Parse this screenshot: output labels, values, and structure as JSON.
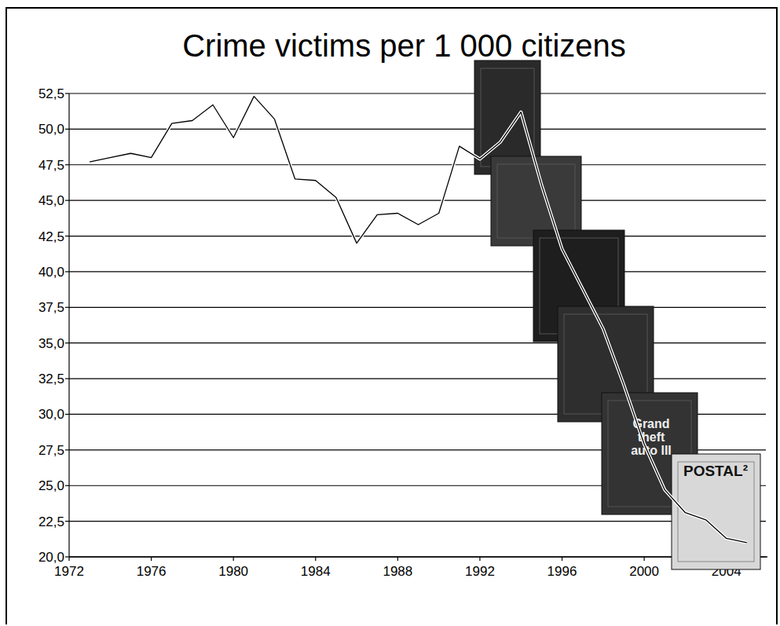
{
  "chart_data": {
    "type": "line",
    "title": "Crime victims per 1 000 citizens",
    "x": [
      1973,
      1974,
      1975,
      1976,
      1977,
      1978,
      1979,
      1980,
      1981,
      1982,
      1983,
      1984,
      1985,
      1986,
      1987,
      1988,
      1989,
      1990,
      1991,
      1992,
      1993,
      1994,
      1995,
      1996,
      1997,
      1998,
      1999,
      2000,
      2001,
      2002,
      2003,
      2004,
      2005
    ],
    "values": [
      47.7,
      48.0,
      48.3,
      48.0,
      50.4,
      50.6,
      51.7,
      49.4,
      52.3,
      50.7,
      46.5,
      46.4,
      45.2,
      42.0,
      44.0,
      44.1,
      43.3,
      44.1,
      48.8,
      47.9,
      49.1,
      51.2,
      46.1,
      41.6,
      38.8,
      36.0,
      32.1,
      27.9,
      24.7,
      23.1,
      22.6,
      21.3,
      21.0
    ],
    "color": "#000000",
    "xlim": [
      1972,
      2006
    ],
    "xticks": [
      1972,
      1976,
      1980,
      1984,
      1988,
      1992,
      1996,
      2000,
      2004
    ],
    "ylim": [
      20,
      52.5
    ],
    "yticks": [
      {
        "value": 20,
        "label": "20,0"
      },
      {
        "value": 22.5,
        "label": "22,5"
      },
      {
        "value": 25,
        "label": "25,0"
      },
      {
        "value": 27.5,
        "label": "27,5"
      },
      {
        "value": 30,
        "label": "30,0"
      },
      {
        "value": 32.5,
        "label": "32,5"
      },
      {
        "value": 35,
        "label": "35,0"
      },
      {
        "value": 37.5,
        "label": "37,5"
      },
      {
        "value": 40,
        "label": "40,0"
      },
      {
        "value": 42.5,
        "label": "42,5"
      },
      {
        "value": 45,
        "label": "45,0"
      },
      {
        "value": 47.5,
        "label": "47,5"
      },
      {
        "value": 50,
        "label": "50,0"
      },
      {
        "value": 52.5,
        "label": "52,5"
      }
    ],
    "grid": true,
    "annotations": [
      "Grand theft auto III",
      "POSTAL²"
    ]
  }
}
